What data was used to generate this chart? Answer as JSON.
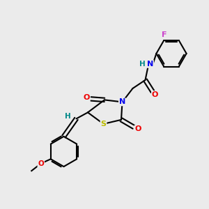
{
  "background_color": "#ebebeb",
  "atom_colors": {
    "C": "#000000",
    "N": "#0000ee",
    "O": "#ee0000",
    "S": "#bbbb00",
    "F": "#cc44cc",
    "H_label": "#008888"
  },
  "figsize": [
    3.0,
    3.0
  ],
  "dpi": 100
}
